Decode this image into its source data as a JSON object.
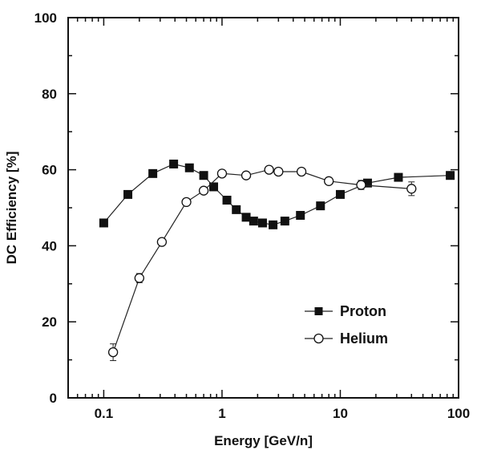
{
  "chart_data": {
    "type": "line",
    "title": "",
    "xlabel": "Energy [GeV/n]",
    "ylabel": "DC Efficiency [%]",
    "xscale": "log",
    "xlim": [
      0.05,
      100
    ],
    "ylim": [
      0,
      100
    ],
    "x_tick_labels": [
      "0.1",
      "1",
      "10",
      "100"
    ],
    "y_tick_labels": [
      "0",
      "20",
      "40",
      "60",
      "80",
      "100"
    ],
    "legend": {
      "position": "center-right",
      "entries": [
        "Proton",
        "Helium"
      ]
    },
    "series": [
      {
        "name": "Proton",
        "marker": "filled-square",
        "x": [
          0.1,
          0.16,
          0.26,
          0.39,
          0.53,
          0.7,
          0.85,
          1.1,
          1.32,
          1.6,
          1.85,
          2.2,
          2.7,
          3.4,
          4.6,
          6.8,
          10,
          17,
          31,
          85
        ],
        "y": [
          46,
          53.5,
          59,
          61.5,
          60.5,
          58.5,
          55.5,
          52,
          49.5,
          47.5,
          46.5,
          46,
          45.5,
          46.5,
          48,
          50.5,
          53.5,
          56.5,
          58,
          58.5
        ]
      },
      {
        "name": "Helium",
        "marker": "open-circle",
        "x": [
          0.12,
          0.2,
          0.31,
          0.5,
          0.7,
          1.0,
          1.6,
          2.5,
          3.0,
          4.7,
          8.0,
          15,
          40
        ],
        "y": [
          12,
          31.5,
          41,
          51.5,
          54.5,
          59,
          58.5,
          60,
          59.5,
          59.5,
          57,
          56,
          55
        ],
        "y_err": [
          2.2,
          1.2,
          0.8,
          0.6,
          0.6,
          0.6,
          0.6,
          0.6,
          0.6,
          0.6,
          0.8,
          1.2,
          1.8
        ]
      }
    ]
  }
}
